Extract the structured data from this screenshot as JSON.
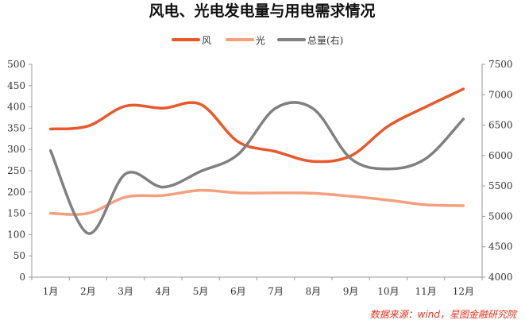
{
  "chart_data": {
    "type": "line",
    "title": "风电、光电发电量与用电需求情况",
    "categories": [
      "1月",
      "2月",
      "3月",
      "4月",
      "5月",
      "6月",
      "7月",
      "8月",
      "9月",
      "10月",
      "11月",
      "12月"
    ],
    "left_axis": {
      "ylim": [
        0,
        500
      ],
      "ticks": [
        "0",
        "50",
        "100",
        "150",
        "200",
        "250",
        "300",
        "350",
        "400",
        "450",
        "500"
      ]
    },
    "right_axis": {
      "ylim": [
        4000,
        7500
      ],
      "ticks": [
        "4000",
        "4500",
        "5000",
        "5500",
        "6000",
        "6500",
        "7000",
        "7500"
      ]
    },
    "legend_position": "top",
    "grid": false,
    "series": [
      {
        "name": "风",
        "axis": "left",
        "color": "#e8582a",
        "values": [
          348,
          355,
          402,
          397,
          406,
          318,
          295,
          272,
          285,
          355,
          400,
          442
        ]
      },
      {
        "name": "光",
        "axis": "left",
        "color": "#f4a07c",
        "values": [
          150,
          150,
          188,
          192,
          204,
          198,
          198,
          197,
          190,
          181,
          170,
          168
        ]
      },
      {
        "name": "总量(右)",
        "axis": "right",
        "color": "#808080",
        "values": [
          6080,
          4720,
          5700,
          5480,
          5740,
          6020,
          6780,
          6770,
          5950,
          5780,
          5950,
          6600
        ]
      }
    ]
  },
  "source_note": "数据来源：wind，星图金融研究院"
}
